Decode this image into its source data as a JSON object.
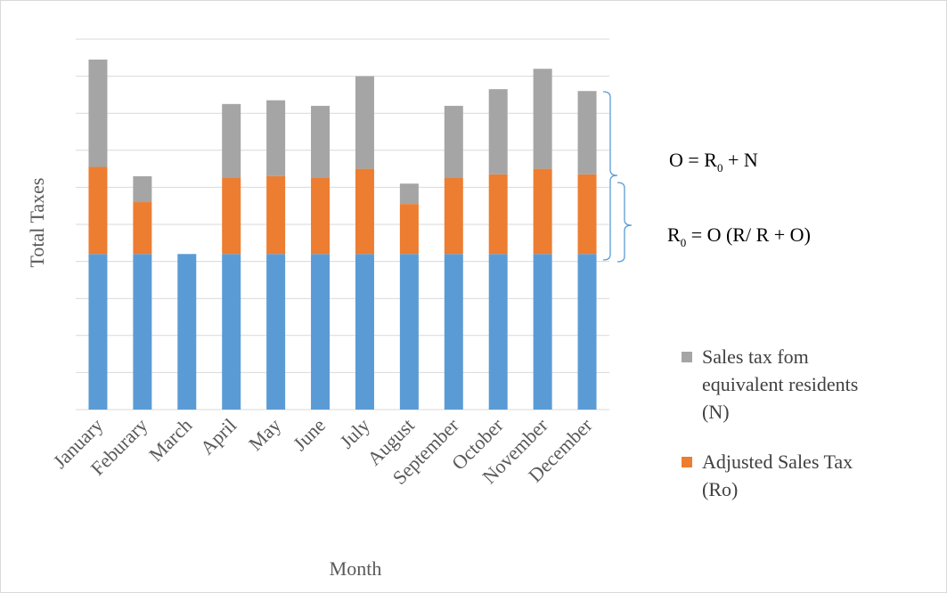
{
  "chart_data": {
    "type": "bar",
    "stacked": true,
    "xlabel": "Month",
    "ylabel": "Total Taxes",
    "ylim": [
      0,
      10
    ],
    "y_tick_labels_shown": false,
    "grid": true,
    "legend_position": "right",
    "categories": [
      "January",
      "Feburary",
      "March",
      "April",
      "May",
      "June",
      "July",
      "August",
      "September",
      "October",
      "November",
      "December"
    ],
    "series": [
      {
        "name": "",
        "color": "#5b9bd5",
        "values": [
          4.2,
          4.2,
          4.2,
          4.2,
          4.2,
          4.2,
          4.2,
          4.2,
          4.2,
          4.2,
          4.2,
          4.2
        ]
      },
      {
        "name": "Adjusted Sales Tax (Ro)",
        "color": "#ed7d31",
        "values": [
          2.35,
          1.4,
          0,
          2.05,
          2.1,
          2.05,
          2.3,
          1.35,
          2.05,
          2.15,
          2.3,
          2.15
        ]
      },
      {
        "name": "Sales tax fom equivalent residents (N)",
        "color": "#a5a5a5",
        "values": [
          2.9,
          0.7,
          0,
          2.0,
          2.05,
          1.95,
          2.5,
          0.55,
          1.95,
          2.3,
          2.7,
          2.25
        ]
      }
    ],
    "legend": [
      {
        "label_lines": [
          "Sales tax fom",
          "equivalent residents",
          "(N)"
        ],
        "color": "#a5a5a5"
      },
      {
        "label_lines": [
          "Adjusted Sales Tax",
          "(Ro)"
        ],
        "color": "#ed7d31"
      }
    ],
    "annotations": [
      {
        "text_main": "O = R",
        "sub": "0",
        "text_rest": " + N"
      },
      {
        "text_main": "R",
        "sub": "0",
        "text_rest": " = O (R/ R + O)"
      }
    ]
  }
}
